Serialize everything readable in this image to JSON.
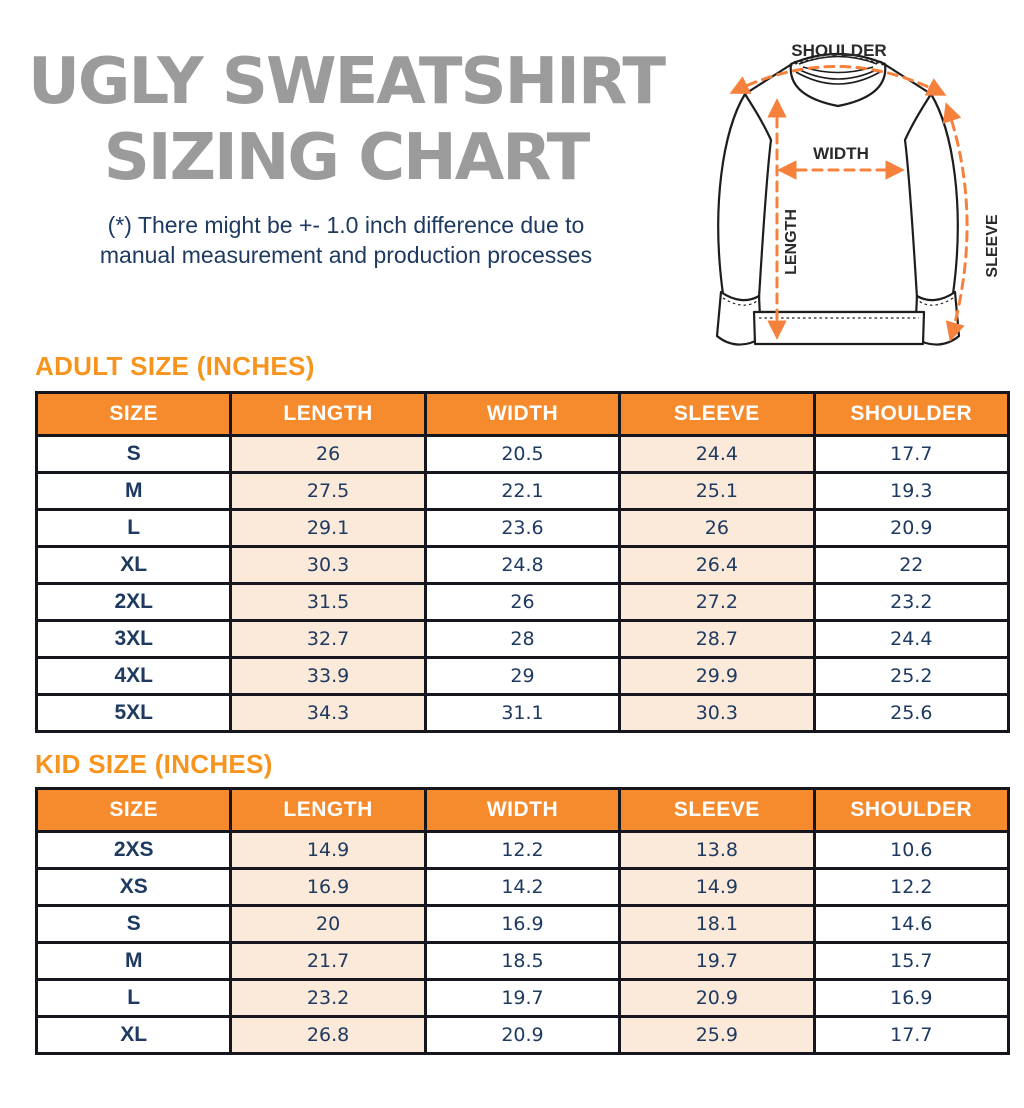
{
  "colors": {
    "accent_orange": "#f68b2e",
    "section_title_orange": "#f7941e",
    "arrow_orange": "#f5813c",
    "peach_cell": "#fbe9d9",
    "navy_text": "#1e3a61",
    "title_gray": "#9b9b9b",
    "table_border": "#16161e"
  },
  "header": {
    "title_line1": "UGLY SWEATSHIRT",
    "title_line2": "SIZING CHART",
    "subtitle_line1": "(*) There might be +- 1.0 inch difference due to",
    "subtitle_line2": "manual measurement and production processes"
  },
  "diagram": {
    "labels": {
      "shoulder": "SHOULDER",
      "width": "WIDTH",
      "length": "LENGTH",
      "sleeve": "SLEEVE"
    }
  },
  "chart_data": [
    {
      "type": "table",
      "title": "ADULT SIZE (INCHES)",
      "columns": [
        "SIZE",
        "LENGTH",
        "WIDTH",
        "SLEEVE",
        "SHOULDER"
      ],
      "rows": [
        [
          "S",
          26,
          20.5,
          24.4,
          17.7
        ],
        [
          "M",
          27.5,
          22.1,
          25.1,
          19.3
        ],
        [
          "L",
          29.1,
          23.6,
          26,
          20.9
        ],
        [
          "XL",
          30.3,
          24.8,
          26.4,
          22
        ],
        [
          "2XL",
          31.5,
          26,
          27.2,
          23.2
        ],
        [
          "3XL",
          32.7,
          28,
          28.7,
          24.4
        ],
        [
          "4XL",
          33.9,
          29,
          29.9,
          25.2
        ],
        [
          "5XL",
          34.3,
          31.1,
          30.3,
          25.6
        ]
      ]
    },
    {
      "type": "table",
      "title": "KID SIZE (INCHES)",
      "columns": [
        "SIZE",
        "LENGTH",
        "WIDTH",
        "SLEEVE",
        "SHOULDER"
      ],
      "rows": [
        [
          "2XS",
          14.9,
          12.2,
          13.8,
          10.6
        ],
        [
          "XS",
          16.9,
          14.2,
          14.9,
          12.2
        ],
        [
          "S",
          20,
          16.9,
          18.1,
          14.6
        ],
        [
          "M",
          21.7,
          18.5,
          19.7,
          15.7
        ],
        [
          "L",
          23.2,
          19.7,
          20.9,
          16.9
        ],
        [
          "XL",
          26.8,
          20.9,
          25.9,
          17.7
        ]
      ]
    }
  ]
}
